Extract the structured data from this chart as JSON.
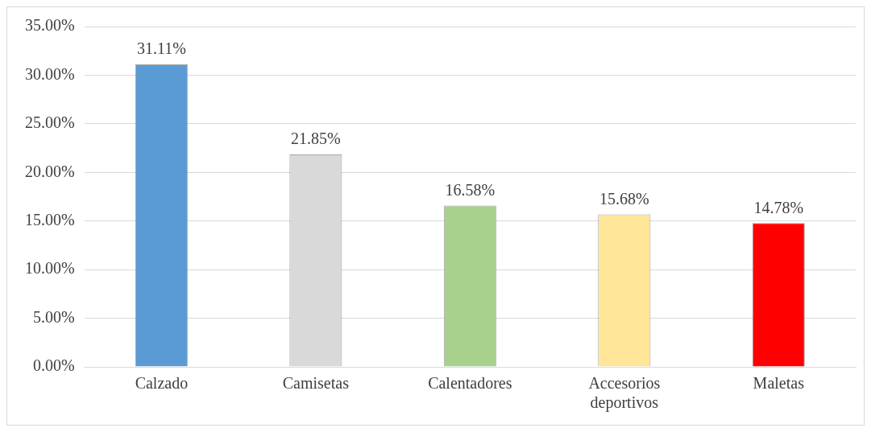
{
  "chart_data": {
    "type": "bar",
    "categories": [
      "Calzado",
      "Camisetas",
      "Calentadores",
      "Accesorios deportivos",
      "Maletas"
    ],
    "values": [
      31.11,
      21.85,
      16.58,
      15.68,
      14.78
    ],
    "colors": [
      "#5b9bd5",
      "#d9d9d9",
      "#a9d18e",
      "#ffe699",
      "#ff0000"
    ],
    "value_labels": [
      "31.11%",
      "21.85%",
      "16.58%",
      "15.68%",
      "14.78%"
    ],
    "ylim": [
      0,
      35
    ],
    "yticks": [
      {
        "value": 0,
        "label": "0.00%"
      },
      {
        "value": 5,
        "label": "5.00%"
      },
      {
        "value": 10,
        "label": "10.00%"
      },
      {
        "value": 15,
        "label": "15.00%"
      },
      {
        "value": 20,
        "label": "20.00%"
      },
      {
        "value": 25,
        "label": "25.00%"
      },
      {
        "value": 30,
        "label": "30.00%"
      },
      {
        "value": 35,
        "label": "35.00%"
      }
    ],
    "grid": "y",
    "legend": false
  }
}
